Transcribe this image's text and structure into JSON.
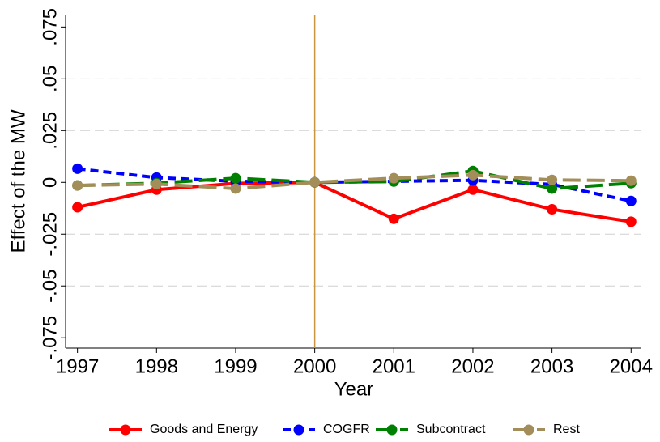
{
  "chart_data": {
    "type": "line",
    "x_label": "Year",
    "y_label": "Effect of the MW",
    "x": [
      1997,
      1998,
      1999,
      2000,
      2001,
      2002,
      2003,
      2004
    ],
    "xlim": [
      1996.85,
      2004.12
    ],
    "xticks": [
      1997,
      1998,
      1999,
      2000,
      2001,
      2002,
      2003,
      2004
    ],
    "ylim": [
      -0.08,
      0.081
    ],
    "yticks": [
      {
        "value": -0.075,
        "label": "-.075"
      },
      {
        "value": -0.05,
        "label": "-.05"
      },
      {
        "value": -0.025,
        "label": "-.025"
      },
      0,
      {
        "value": 0.025,
        "label": ".025"
      },
      {
        "value": 0.05,
        "label": ".05"
      },
      {
        "value": 0.075,
        "label": ".075"
      }
    ],
    "grid": true,
    "vline": 2000,
    "vline_color": "#c8963c",
    "legend": "bottom",
    "series": [
      {
        "name": "Goods and Energy",
        "color": "#ff0000",
        "dash": "solid",
        "values": [
          -0.012,
          -0.0035,
          -0.0005,
          0,
          -0.0176,
          -0.0035,
          -0.013,
          -0.019
        ]
      },
      {
        "name": "COGFR",
        "color": "#0000ff",
        "dash": "dashed",
        "values": [
          0.0066,
          0.0023,
          0.0005,
          0,
          0.0005,
          0.001,
          -0.001,
          -0.009
        ]
      },
      {
        "name": "Subcontract",
        "color": "#008000",
        "dash": "longdash",
        "values": [
          -0.0015,
          -0.0004,
          0.002,
          0,
          0.0004,
          0.0055,
          -0.003,
          -0.0004
        ]
      },
      {
        "name": "Rest",
        "color": "#a38e5a",
        "dash": "longdash",
        "values": [
          -0.0015,
          -0.0008,
          -0.003,
          0,
          0.002,
          0.0035,
          0.0012,
          0.0008
        ]
      }
    ]
  }
}
